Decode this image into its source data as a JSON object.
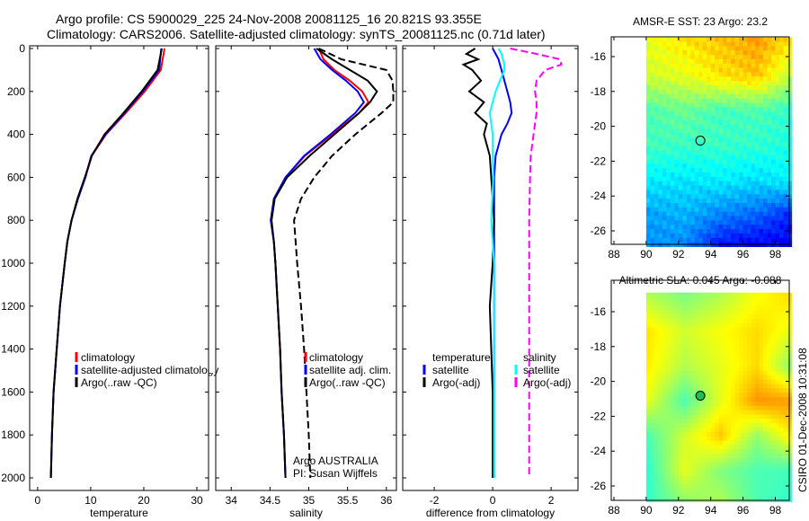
{
  "header": {
    "title_line1": "Argo profile: CS 5900029_225 24-Nov-2008 20081125_16 20.821S 93.355E",
    "title_line2": "Climatology: CARS2006. Satellite-adjusted climatology: synTS_20081125.nc (0.71d later)"
  },
  "footer": {
    "stamp": "CSIRO 01-Dec-2008 10:31:08"
  },
  "colors": {
    "climatology": "#ff0000",
    "satellite": "#0000ff",
    "argo": "#000000",
    "sal_satellite": "#00ffff",
    "sal_argo": "#ff00ff"
  },
  "chart_data": [
    {
      "type": "line",
      "id": "temperature",
      "xlabel": "temperature",
      "ylabel": "",
      "ylim": [
        0,
        2000
      ],
      "yreversed": true,
      "xlim": [
        -1.5,
        32.2
      ],
      "xticks": [
        "0",
        "10",
        "20",
        "30"
      ],
      "xtick_values": [
        0,
        10,
        20,
        30
      ],
      "yticks": [
        "0",
        "200",
        "400",
        "600",
        "800",
        "1000",
        "1200",
        "1400",
        "1600",
        "1800",
        "2000"
      ],
      "depth": [
        0,
        100,
        200,
        300,
        400,
        500,
        600,
        700,
        800,
        900,
        1000,
        1200,
        1400,
        1600,
        1800,
        2000
      ],
      "series": [
        {
          "name": "climatology",
          "color": "#ff0000",
          "dash": false,
          "values": [
            23.9,
            23.2,
            20.2,
            16.6,
            12.9,
            10.2,
            9.0,
            7.6,
            6.4,
            5.6,
            5.1,
            4.2,
            3.6,
            3.0,
            2.7,
            2.5
          ]
        },
        {
          "name": "satellite-adjusted climatology",
          "color": "#0000ff",
          "dash": false,
          "values": [
            23.3,
            22.9,
            19.8,
            16.4,
            12.8,
            10.1,
            9.0,
            7.6,
            6.4,
            5.6,
            5.1,
            4.2,
            3.6,
            3.0,
            2.7,
            2.5
          ]
        },
        {
          "name": "Argo(..raw -QC)",
          "color": "#000000",
          "dash": false,
          "values": [
            23.4,
            22.6,
            19.6,
            16.2,
            12.6,
            10.2,
            8.9,
            7.5,
            6.4,
            5.6,
            5.1,
            4.2,
            3.6,
            3.0,
            2.7,
            2.5
          ]
        }
      ]
    },
    {
      "type": "line",
      "id": "salinity",
      "xlabel": "salinity",
      "ylim": [
        0,
        2000
      ],
      "yreversed": true,
      "xlim": [
        33.8,
        36.13
      ],
      "xticks": [
        "34",
        "34.5",
        "35",
        "35.5",
        "36"
      ],
      "xtick_values": [
        34,
        34.5,
        35,
        35.5,
        36
      ],
      "depth": [
        0,
        50,
        100,
        150,
        200,
        250,
        300,
        400,
        500,
        600,
        700,
        800,
        900,
        1000,
        1200,
        1400,
        1600,
        1800,
        2000
      ],
      "annotations": [
        "Argo AUSTRALIA",
        "PI: Susan Wijffels"
      ],
      "series": [
        {
          "name": "climatology",
          "color": "#ff0000",
          "dash": false,
          "values": [
            35.13,
            35.19,
            35.33,
            35.53,
            35.69,
            35.77,
            35.65,
            35.3,
            34.95,
            34.7,
            34.55,
            34.51,
            34.55,
            34.57,
            34.6,
            34.63,
            34.65,
            34.68,
            34.7
          ]
        },
        {
          "name": "satellite adj. clim.",
          "color": "#0000ff",
          "dash": false,
          "values": [
            35.07,
            35.15,
            35.3,
            35.48,
            35.63,
            35.71,
            35.6,
            35.28,
            34.94,
            34.7,
            34.55,
            34.51,
            34.55,
            34.57,
            34.6,
            34.63,
            34.65,
            34.68,
            34.7
          ]
        },
        {
          "name": "Argo",
          "color": "#000000",
          "dash": false,
          "legend": false,
          "values": [
            35.1,
            35.3,
            35.53,
            35.76,
            35.88,
            35.79,
            35.65,
            35.33,
            35.01,
            34.72,
            34.56,
            34.52,
            34.55,
            34.57,
            34.6,
            34.63,
            34.65,
            34.68,
            34.7
          ]
        },
        {
          "name": "Argo(..raw -QC)",
          "color": "#000000",
          "dash": true,
          "values": [
            35.13,
            35.42,
            36.0,
            36.08,
            36.09,
            36.09,
            35.94,
            35.6,
            35.3,
            35.07,
            34.9,
            34.81,
            34.83,
            34.85,
            34.9,
            34.94,
            34.97,
            35.0,
            35.02
          ]
        }
      ]
    },
    {
      "type": "line",
      "id": "difference",
      "xlabel": "difference from climatology",
      "ylim": [
        0,
        2000
      ],
      "yreversed": true,
      "xlim": [
        -3.08,
        2.92
      ],
      "xticks": [
        "-2",
        "0",
        "2"
      ],
      "xtick_values": [
        -2,
        0,
        2
      ],
      "legend_headers": [
        "temperature",
        "salinity"
      ],
      "depth": [
        0,
        25,
        50,
        75,
        100,
        150,
        200,
        250,
        300,
        350,
        400,
        500,
        600,
        800,
        1000,
        1200,
        1600,
        2000
      ],
      "series": [
        {
          "name": "satellite",
          "group": "temperature",
          "color": "#0000ff",
          "dash": false,
          "values": [
            0,
            0.1,
            0.2,
            0.25,
            0.3,
            0.4,
            0.5,
            0.6,
            0.65,
            0.5,
            0.3,
            0.1,
            0.05,
            0.05,
            0.05,
            0.05,
            0.05,
            0.05
          ]
        },
        {
          "name": "Argo(-adj)",
          "group": "temperature",
          "color": "#000000",
          "dash": false,
          "values": [
            -0.6,
            -0.9,
            -0.5,
            -1.0,
            -0.7,
            -0.4,
            -0.8,
            -0.3,
            -0.6,
            -0.2,
            -0.3,
            -0.1,
            -0.05,
            0.05,
            0,
            -0.1,
            0,
            0
          ]
        },
        {
          "name": "satellite",
          "group": "salinity",
          "color": "#00ffff",
          "dash": false,
          "values": [
            0.2,
            0.3,
            0.35,
            0.4,
            0.4,
            0.25,
            0.1,
            0,
            -0.1,
            -0.05,
            0,
            0,
            0.02,
            -0.05,
            0.05,
            0.05,
            0.05,
            0.05
          ]
        },
        {
          "name": "Argo(-adj)",
          "group": "salinity",
          "color": "#ff00ff",
          "dash": true,
          "values": [
            0.6,
            1.5,
            2.3,
            2.35,
            1.8,
            1.5,
            1.45,
            1.5,
            1.5,
            1.45,
            1.4,
            1.3,
            1.28,
            1.25,
            1.25,
            1.25,
            1.25,
            1.25
          ]
        }
      ]
    },
    {
      "type": "heatmap",
      "id": "sst_map",
      "title": "AMSR-E SST: 23 Argo: 23.2",
      "xticks": [
        "88",
        "90",
        "92",
        "94",
        "96",
        "98"
      ],
      "xtick_values": [
        88,
        90,
        92,
        94,
        96,
        98
      ],
      "yticks": [
        "-16",
        "-18",
        "-20",
        "-22",
        "-24",
        "-26"
      ],
      "ytick_values": [
        -16,
        -18,
        -20,
        -22,
        -24,
        -26
      ],
      "lon_range": [
        90,
        98.8
      ],
      "lat_range": [
        -14.9,
        -26.8
      ],
      "marker": {
        "lon": 93.355,
        "lat": -20.821,
        "filled": false
      },
      "grid_lats": [
        -15,
        -17,
        -19,
        -21,
        -23,
        -25,
        -27
      ],
      "grid_values_normalized": [
        [
          0.6,
          0.65,
          0.68,
          0.72,
          0.65
        ],
        [
          0.58,
          0.6,
          0.65,
          0.68,
          0.55
        ],
        [
          0.45,
          0.48,
          0.44,
          0.45,
          0.42
        ],
        [
          0.44,
          0.43,
          0.43,
          0.42,
          0.4
        ],
        [
          0.36,
          0.35,
          0.36,
          0.34,
          0.37
        ],
        [
          0.28,
          0.3,
          0.25,
          0.22,
          0.15
        ],
        [
          0.27,
          0.25,
          0.12,
          0.1,
          0.12
        ]
      ]
    },
    {
      "type": "heatmap",
      "id": "sla_map",
      "title": "Altimetric SLA: 0.045 Argo: -0.088",
      "xticks": [
        "88",
        "90",
        "92",
        "94",
        "96",
        "98"
      ],
      "xtick_values": [
        88,
        90,
        92,
        94,
        96,
        98
      ],
      "yticks": [
        "-16",
        "-18",
        "-20",
        "-22",
        "-24",
        "-26"
      ],
      "ytick_values": [
        -16,
        -18,
        -20,
        -22,
        -24,
        -26
      ],
      "lon_range": [
        90,
        98.8
      ],
      "lat_range": [
        -14.9,
        -26.8
      ],
      "marker": {
        "lon": 93.355,
        "lat": -20.821,
        "filled": true
      },
      "grid_lats": [
        -15,
        -17,
        -19,
        -21,
        -23,
        -25,
        -27
      ],
      "grid_values_normalized": [
        [
          0.55,
          0.5,
          0.55,
          0.62,
          0.66
        ],
        [
          0.65,
          0.58,
          0.62,
          0.66,
          0.6
        ],
        [
          0.64,
          0.55,
          0.6,
          0.66,
          0.5
        ],
        [
          0.6,
          0.45,
          0.6,
          0.73,
          0.72
        ],
        [
          0.45,
          0.58,
          0.68,
          0.52,
          0.65
        ],
        [
          0.42,
          0.6,
          0.5,
          0.45,
          0.44
        ],
        [
          0.43,
          0.5,
          0.55,
          0.45,
          0.42
        ]
      ]
    }
  ]
}
